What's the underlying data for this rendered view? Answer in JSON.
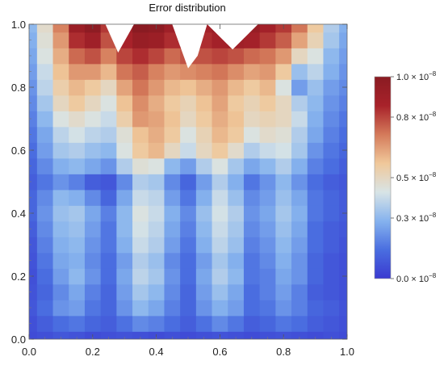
{
  "chart_data": {
    "type": "heatmap",
    "title": "Error distribution",
    "xlabel": "",
    "ylabel": "",
    "xlim": [
      0,
      1
    ],
    "ylim": [
      0,
      1
    ],
    "x_ticks": [
      0.0,
      0.2,
      0.4,
      0.6,
      0.8,
      1.0
    ],
    "x_tick_labels": [
      "0.0",
      "0.2",
      "0.4",
      "0.6",
      "0.8",
      "1.0"
    ],
    "y_ticks": [
      0.0,
      0.2,
      0.4,
      0.6,
      0.8,
      1.0
    ],
    "y_tick_labels": [
      "0.0",
      "0.2",
      "0.4",
      "0.6",
      "0.8",
      "1.0"
    ],
    "colorbar": {
      "min": 0.0,
      "max": 1.0,
      "unit_exponent": -8,
      "ticks": [
        0.0,
        0.3,
        0.5,
        0.8,
        1.0
      ],
      "tick_mantissas": [
        "0.0",
        "0.3",
        "0.5",
        "0.8",
        "1.0"
      ],
      "tick_suffix": " × 10",
      "tick_exponent": "−8",
      "colors": [
        "#3a3ad0",
        "#4a6ee0",
        "#86b3ee",
        "#d8e4e6",
        "#f0c89a",
        "#d47a5a",
        "#a8222a",
        "#8a1b22"
      ]
    },
    "grid": false,
    "clip_top_profile": {
      "x": [
        0.0,
        0.24,
        0.28,
        0.33,
        0.45,
        0.5,
        0.53,
        0.56,
        0.64,
        0.72,
        1.0
      ],
      "y_cut": [
        1.0,
        1.0,
        0.91,
        1.0,
        1.0,
        0.86,
        0.9,
        1.0,
        0.92,
        1.0,
        1.0
      ]
    },
    "x": [
      0.0,
      0.05,
      0.1,
      0.15,
      0.2,
      0.25,
      0.3,
      0.35,
      0.4,
      0.45,
      0.5,
      0.55,
      0.6,
      0.65,
      0.7,
      0.75,
      0.8,
      0.85,
      0.9,
      0.95,
      1.0
    ],
    "y": [
      0.0,
      0.05,
      0.1,
      0.15,
      0.2,
      0.25,
      0.3,
      0.35,
      0.4,
      0.45,
      0.5,
      0.55,
      0.6,
      0.65,
      0.7,
      0.75,
      0.8,
      0.85,
      0.9,
      0.95,
      1.0
    ],
    "z": [
      [
        0.05,
        0.06,
        0.08,
        0.07,
        0.05,
        0.06,
        0.07,
        0.06,
        0.05,
        0.06,
        0.05,
        0.06,
        0.07,
        0.06,
        0.05,
        0.06,
        0.07,
        0.06,
        0.05,
        0.06,
        0.05
      ],
      [
        0.06,
        0.1,
        0.14,
        0.16,
        0.12,
        0.1,
        0.15,
        0.2,
        0.18,
        0.14,
        0.1,
        0.15,
        0.2,
        0.16,
        0.1,
        0.12,
        0.16,
        0.14,
        0.1,
        0.08,
        0.06
      ],
      [
        0.08,
        0.14,
        0.22,
        0.24,
        0.16,
        0.12,
        0.22,
        0.3,
        0.26,
        0.18,
        0.12,
        0.22,
        0.28,
        0.24,
        0.14,
        0.16,
        0.22,
        0.18,
        0.12,
        0.1,
        0.07
      ],
      [
        0.07,
        0.12,
        0.2,
        0.26,
        0.18,
        0.12,
        0.24,
        0.34,
        0.3,
        0.2,
        0.12,
        0.24,
        0.32,
        0.26,
        0.14,
        0.18,
        0.24,
        0.18,
        0.1,
        0.08,
        0.06
      ],
      [
        0.06,
        0.14,
        0.24,
        0.3,
        0.22,
        0.14,
        0.26,
        0.38,
        0.34,
        0.22,
        0.14,
        0.26,
        0.36,
        0.3,
        0.16,
        0.18,
        0.26,
        0.22,
        0.12,
        0.08,
        0.06
      ],
      [
        0.07,
        0.16,
        0.26,
        0.28,
        0.2,
        0.14,
        0.24,
        0.36,
        0.32,
        0.2,
        0.14,
        0.24,
        0.34,
        0.28,
        0.16,
        0.2,
        0.28,
        0.22,
        0.12,
        0.08,
        0.06
      ],
      [
        0.08,
        0.18,
        0.28,
        0.3,
        0.22,
        0.16,
        0.28,
        0.4,
        0.36,
        0.24,
        0.16,
        0.28,
        0.38,
        0.32,
        0.18,
        0.22,
        0.3,
        0.24,
        0.14,
        0.1,
        0.07
      ],
      [
        0.1,
        0.2,
        0.3,
        0.32,
        0.24,
        0.16,
        0.3,
        0.42,
        0.38,
        0.26,
        0.18,
        0.3,
        0.4,
        0.34,
        0.2,
        0.24,
        0.32,
        0.26,
        0.14,
        0.1,
        0.08
      ],
      [
        0.12,
        0.22,
        0.32,
        0.34,
        0.26,
        0.18,
        0.3,
        0.44,
        0.4,
        0.28,
        0.2,
        0.32,
        0.42,
        0.36,
        0.22,
        0.26,
        0.34,
        0.28,
        0.16,
        0.12,
        0.09
      ],
      [
        0.12,
        0.2,
        0.3,
        0.28,
        0.2,
        0.12,
        0.26,
        0.4,
        0.38,
        0.24,
        0.16,
        0.28,
        0.4,
        0.32,
        0.2,
        0.24,
        0.32,
        0.26,
        0.16,
        0.12,
        0.09
      ],
      [
        0.1,
        0.16,
        0.22,
        0.18,
        0.1,
        0.08,
        0.2,
        0.36,
        0.34,
        0.2,
        0.12,
        0.24,
        0.36,
        0.28,
        0.16,
        0.22,
        0.3,
        0.22,
        0.14,
        0.1,
        0.08
      ],
      [
        0.12,
        0.2,
        0.28,
        0.3,
        0.26,
        0.22,
        0.36,
        0.46,
        0.44,
        0.3,
        0.24,
        0.36,
        0.44,
        0.34,
        0.26,
        0.3,
        0.36,
        0.28,
        0.18,
        0.14,
        0.1
      ],
      [
        0.14,
        0.24,
        0.34,
        0.36,
        0.32,
        0.3,
        0.44,
        0.56,
        0.6,
        0.5,
        0.4,
        0.5,
        0.56,
        0.48,
        0.36,
        0.4,
        0.42,
        0.34,
        0.22,
        0.16,
        0.12
      ],
      [
        0.16,
        0.26,
        0.38,
        0.42,
        0.38,
        0.36,
        0.46,
        0.58,
        0.62,
        0.56,
        0.44,
        0.52,
        0.6,
        0.56,
        0.44,
        0.48,
        0.46,
        0.36,
        0.26,
        0.18,
        0.14
      ],
      [
        0.18,
        0.3,
        0.44,
        0.48,
        0.44,
        0.4,
        0.54,
        0.66,
        0.64,
        0.58,
        0.5,
        0.56,
        0.62,
        0.58,
        0.5,
        0.52,
        0.5,
        0.4,
        0.28,
        0.2,
        0.16
      ],
      [
        0.2,
        0.34,
        0.5,
        0.56,
        0.5,
        0.44,
        0.58,
        0.68,
        0.62,
        0.56,
        0.52,
        0.58,
        0.64,
        0.56,
        0.52,
        0.56,
        0.5,
        0.36,
        0.3,
        0.22,
        0.18
      ],
      [
        0.22,
        0.38,
        0.54,
        0.6,
        0.56,
        0.5,
        0.64,
        0.72,
        0.66,
        0.6,
        0.58,
        0.62,
        0.66,
        0.6,
        0.56,
        0.6,
        0.44,
        0.24,
        0.32,
        0.24,
        0.2
      ],
      [
        0.24,
        0.4,
        0.58,
        0.66,
        0.66,
        0.6,
        0.72,
        0.76,
        0.7,
        0.66,
        0.68,
        0.7,
        0.72,
        0.68,
        0.64,
        0.66,
        0.56,
        0.32,
        0.38,
        0.28,
        0.22
      ],
      [
        0.26,
        0.44,
        0.62,
        0.74,
        0.78,
        0.7,
        0.8,
        0.84,
        0.8,
        0.74,
        0.78,
        0.78,
        0.8,
        0.78,
        0.74,
        0.72,
        0.66,
        0.5,
        0.44,
        0.3,
        0.24
      ],
      [
        0.28,
        0.46,
        0.66,
        0.84,
        0.9,
        0.78,
        0.86,
        0.94,
        0.92,
        0.84,
        0.86,
        0.84,
        0.88,
        0.9,
        0.88,
        0.82,
        0.76,
        0.64,
        0.52,
        0.34,
        0.26
      ],
      [
        0.3,
        0.48,
        0.7,
        0.92,
        0.98,
        0.82,
        0.9,
        1.0,
        0.98,
        0.9,
        0.92,
        0.88,
        0.94,
        0.96,
        0.94,
        0.88,
        0.82,
        0.72,
        0.56,
        0.36,
        0.28
      ]
    ]
  }
}
